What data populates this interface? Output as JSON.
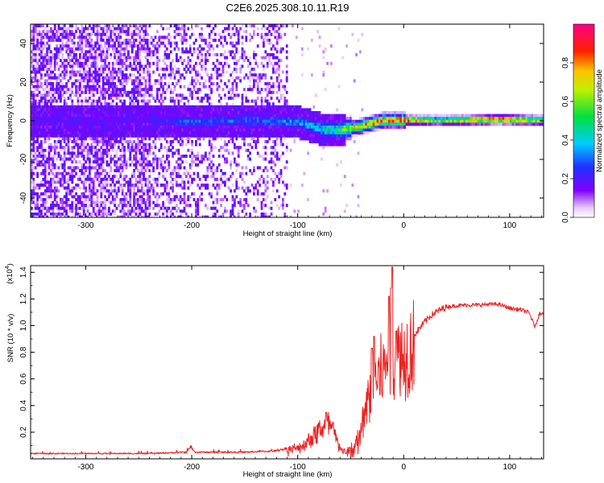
{
  "title": "C2E6.2025.308.10.11.R19",
  "colors": {
    "snr_line": "#ee2222",
    "axis": "#000000",
    "background": "#ffffff"
  },
  "chart_data": [
    {
      "type": "heatmap",
      "name": "spectrogram",
      "xlabel": "Height of straight line (km)",
      "ylabel": "Frequency (Hz)",
      "xlim": [
        -352,
        132
      ],
      "ylim": [
        -50,
        50
      ],
      "xticks": [
        -300,
        -200,
        -100,
        0,
        100
      ],
      "xtick_labels": [
        "-300",
        "-200",
        "-100",
        "0",
        "100"
      ],
      "yticks": [
        -40,
        -20,
        0,
        20,
        40
      ],
      "ytick_labels": [
        "-40",
        "-20",
        "0",
        "20",
        "40"
      ],
      "colorbar": {
        "label": "Normalized spectral amplitude",
        "range": [
          0,
          1
        ],
        "ticks": [
          0.0,
          0.2,
          0.4,
          0.6,
          0.8
        ],
        "tick_labels": [
          "0.0",
          "0.2",
          "0.4",
          "0.6",
          "0.8"
        ],
        "colormap": "rainbow (white-violet-blue-cyan-green-yellow-red-magenta)"
      },
      "ridge": {
        "description": "Doppler ridge near 0 Hz, noisy below -100 km, strong and narrow above -50 km",
        "center_hz": [
          [
            -240,
            1
          ],
          [
            -200,
            0
          ],
          [
            -150,
            1
          ],
          [
            -100,
            0
          ],
          [
            -75,
            -4
          ],
          [
            -60,
            -4
          ],
          [
            -40,
            -2
          ],
          [
            -20,
            1
          ],
          [
            0,
            1
          ],
          [
            50,
            1
          ],
          [
            90,
            1.5
          ],
          [
            132,
            1
          ]
        ],
        "peak_amplitude": [
          [
            -240,
            0.2
          ],
          [
            -210,
            0.3
          ],
          [
            -150,
            0.3
          ],
          [
            -100,
            0.35
          ],
          [
            -70,
            0.45
          ],
          [
            -50,
            0.7
          ],
          [
            -30,
            0.85
          ],
          [
            -12,
            0.9
          ],
          [
            0,
            0.95
          ],
          [
            30,
            0.6
          ],
          [
            80,
            0.9
          ],
          [
            100,
            0.9
          ],
          [
            120,
            0.7
          ]
        ],
        "noise_extent_km": [
          -352,
          -110
        ]
      }
    },
    {
      "type": "line",
      "name": "snr",
      "xlabel": "Height of straight line (km)",
      "ylabel": "SNR (10 * v/v)",
      "y_multiplier": "(x10^4)",
      "y_multiplier_base": "(x10",
      "y_multiplier_exp": "4",
      "y_multiplier_close": ")",
      "xlim": [
        -352,
        132
      ],
      "ylim": [
        0,
        1.45
      ],
      "xticks": [
        -300,
        -200,
        -100,
        0,
        100
      ],
      "xtick_labels": [
        "-300",
        "-200",
        "-100",
        "0",
        "100"
      ],
      "yticks": [
        0.2,
        0.4,
        0.6,
        0.8,
        1.0,
        1.2,
        1.4
      ],
      "ytick_labels": [
        "0.2",
        "0.4",
        "0.6",
        "0.8",
        "1.0",
        "1.2",
        "1.4"
      ],
      "series": [
        {
          "name": "SNR",
          "envelope": [
            [
              -352,
              0.04
            ],
            [
              -240,
              0.04
            ],
            [
              -205,
              0.05
            ],
            [
              -201,
              0.09
            ],
            [
              -197,
              0.05
            ],
            [
              -150,
              0.05
            ],
            [
              -120,
              0.06
            ],
            [
              -100,
              0.1
            ],
            [
              -90,
              0.15
            ],
            [
              -80,
              0.22
            ],
            [
              -73,
              0.28
            ],
            [
              -68,
              0.24
            ],
            [
              -60,
              0.1
            ],
            [
              -55,
              0.06
            ],
            [
              -50,
              0.09
            ],
            [
              -45,
              0.16
            ],
            [
              -40,
              0.28
            ],
            [
              -35,
              0.45
            ],
            [
              -30,
              0.6
            ],
            [
              -25,
              0.66
            ],
            [
              -20,
              0.72
            ],
            [
              -15,
              0.78
            ],
            [
              -10,
              0.8
            ],
            [
              -5,
              0.82
            ],
            [
              0,
              0.84
            ],
            [
              5,
              0.88
            ],
            [
              10,
              0.93
            ],
            [
              15,
              0.98
            ],
            [
              20,
              1.03
            ],
            [
              25,
              1.07
            ],
            [
              30,
              1.1
            ],
            [
              40,
              1.14
            ],
            [
              50,
              1.15
            ],
            [
              60,
              1.155
            ],
            [
              70,
              1.155
            ],
            [
              80,
              1.16
            ],
            [
              90,
              1.16
            ],
            [
              100,
              1.13
            ],
            [
              110,
              1.12
            ],
            [
              118,
              1.1
            ],
            [
              124,
              0.99
            ],
            [
              128,
              1.09
            ],
            [
              132,
              1.1
            ]
          ],
          "spikes": [
            [
              -73,
              0.35
            ],
            [
              -30,
              0.83
            ],
            [
              -28,
              0.92
            ],
            [
              -14,
              1.22
            ],
            [
              -12,
              1.28
            ],
            [
              -11,
              1.44
            ],
            [
              -7,
              0.96
            ]
          ]
        }
      ]
    }
  ]
}
